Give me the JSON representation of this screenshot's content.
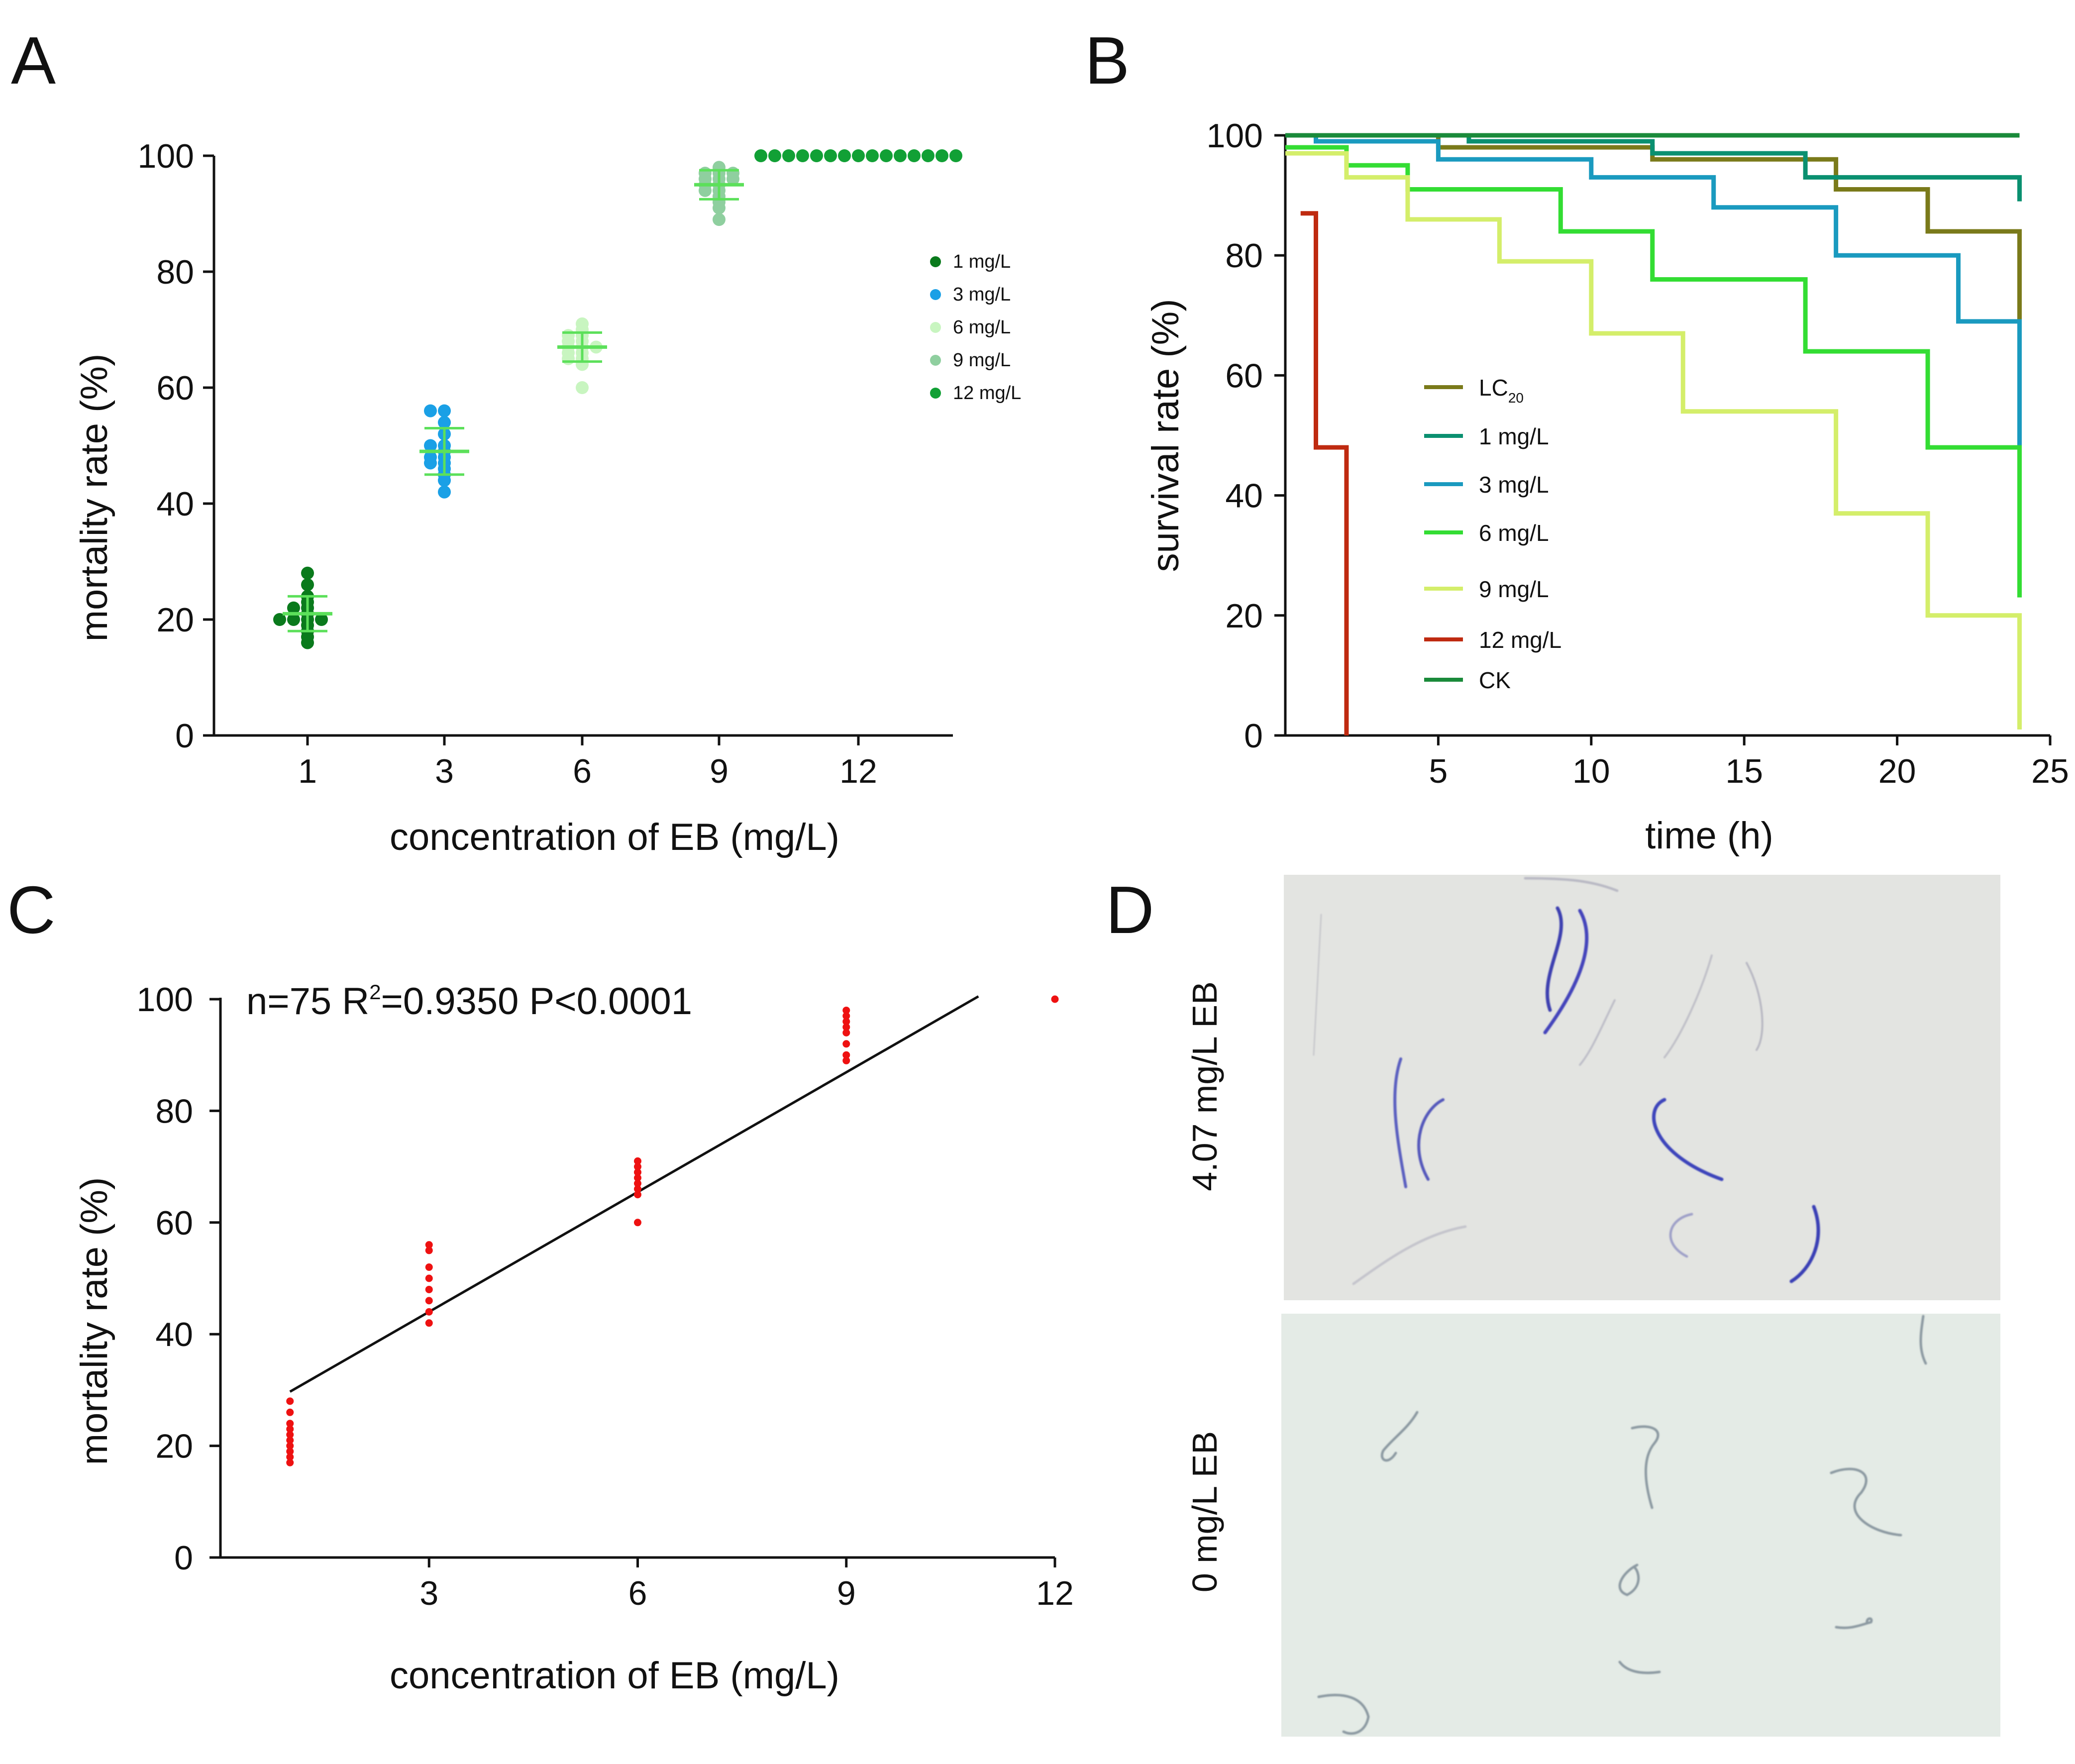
{
  "panels": {
    "A": {
      "letter": "A"
    },
    "B": {
      "letter": "B"
    },
    "C": {
      "letter": "C"
    },
    "D": {
      "letter": "D"
    }
  },
  "chart_data": [
    {
      "id": "A",
      "type": "scatter",
      "xlabel": "concentration of EB (mg/L)",
      "ylabel": "mortality rate (%)",
      "ylim": [
        0,
        100
      ],
      "yticks": [
        "0",
        "20",
        "40",
        "60",
        "80",
        "100"
      ],
      "categories": [
        "1",
        "3",
        "6",
        "9",
        "12"
      ],
      "legend_position": "right",
      "series": [
        {
          "name": "1 mg/L",
          "color": "#0a7a1c",
          "mean": 21,
          "sd": 3,
          "values": [
            28,
            26,
            24,
            23,
            22,
            22,
            21,
            20,
            20,
            20,
            20,
            19,
            18,
            17,
            16
          ]
        },
        {
          "name": "3 mg/L",
          "color": "#1aa0e6",
          "mean": 49,
          "sd": 4,
          "values": [
            56,
            56,
            54,
            52,
            50,
            50,
            49,
            48,
            48,
            47,
            47,
            46,
            45,
            44,
            42
          ]
        },
        {
          "name": "6 mg/L",
          "color": "#c8f5c0",
          "mean": 67,
          "sd": 2.5,
          "values": [
            71,
            70,
            69,
            69,
            68,
            68,
            67,
            67,
            67,
            66,
            66,
            65,
            65,
            64,
            60
          ]
        },
        {
          "name": "9 mg/L",
          "color": "#8fcf9f",
          "mean": 95,
          "sd": 2.5,
          "values": [
            98,
            97,
            97,
            97,
            96,
            96,
            96,
            95,
            95,
            94,
            94,
            93,
            92,
            91,
            89
          ]
        },
        {
          "name": "12 mg/L",
          "color": "#11a035",
          "mean": 100,
          "sd": 0,
          "values": [
            100,
            100,
            100,
            100,
            100,
            100,
            100,
            100,
            100,
            100,
            100,
            100,
            100,
            100,
            100
          ]
        }
      ]
    },
    {
      "id": "B",
      "type": "line",
      "xlabel": "time (h)",
      "ylabel": "survival rate (%)",
      "xlim": [
        0,
        25
      ],
      "ylim": [
        0,
        100
      ],
      "xticks": [
        "5",
        "10",
        "15",
        "20",
        "25"
      ],
      "yticks": [
        "0",
        "20",
        "40",
        "60",
        "80",
        "100"
      ],
      "legend_position": "center-left",
      "series": [
        {
          "name": "LC",
          "name_sub": "20",
          "color": "#7a7a1a",
          "x": [
            0,
            3,
            5,
            10,
            12,
            18,
            21,
            24,
            24
          ],
          "y": [
            100,
            100,
            98,
            98,
            96,
            91,
            84,
            84,
            69
          ]
        },
        {
          "name": "1 mg/L",
          "color": "#0a9070",
          "x": [
            0,
            6,
            12,
            17,
            24,
            24
          ],
          "y": [
            100,
            99,
            97,
            93,
            93,
            89
          ]
        },
        {
          "name": "3 mg/L",
          "color": "#1a9abf",
          "x": [
            0,
            1,
            5,
            10,
            14,
            18,
            22,
            24,
            24
          ],
          "y": [
            100,
            99,
            96,
            93,
            88,
            80,
            69,
            69,
            48
          ]
        },
        {
          "name": "6 mg/L",
          "color": "#33dd33",
          "x": [
            0,
            2,
            4,
            9,
            12,
            17,
            21,
            24,
            24
          ],
          "y": [
            98,
            95,
            91,
            84,
            76,
            64,
            48,
            48,
            23
          ]
        },
        {
          "name": "9 mg/L",
          "color": "#d4ee6a",
          "x": [
            0,
            2,
            4,
            7,
            10,
            13,
            18,
            21,
            24,
            24
          ],
          "y": [
            97,
            93,
            86,
            79,
            67,
            54,
            37,
            20,
            20,
            1
          ]
        },
        {
          "name": "12 mg/L",
          "color": "#bf2a10",
          "x": [
            0.5,
            1,
            2,
            2
          ],
          "y": [
            87,
            48,
            48,
            0
          ]
        },
        {
          "name": "CK",
          "color": "#1a8a3a",
          "x": [
            0,
            24
          ],
          "y": [
            100,
            100
          ]
        }
      ]
    },
    {
      "id": "C",
      "type": "scatter",
      "xlabel": "concentration of EB (mg/L)",
      "ylabel": "mortality rate (%)",
      "xlim": [
        0,
        12
      ],
      "ylim": [
        0,
        100
      ],
      "xticks": [
        "3",
        "6",
        "9",
        "12"
      ],
      "yticks": [
        "0",
        "20",
        "40",
        "60",
        "80",
        "100"
      ],
      "annotation": {
        "prefix": "n=75 R",
        "sup": "2",
        "suffix": "=0.9350 P<0.0001"
      },
      "point_color": "#ee1111",
      "x": [
        1,
        1,
        1,
        1,
        1,
        1,
        1,
        1,
        1,
        1,
        3,
        3,
        3,
        3,
        3,
        3,
        3,
        3,
        6,
        6,
        6,
        6,
        6,
        6,
        6,
        6,
        9,
        9,
        9,
        9,
        9,
        9,
        9,
        9,
        12
      ],
      "y": [
        28,
        26,
        24,
        23,
        22,
        21,
        20,
        19,
        18,
        17,
        56,
        55,
        52,
        50,
        48,
        46,
        44,
        42,
        71,
        70,
        69,
        68,
        67,
        66,
        65,
        60,
        98,
        97,
        96,
        95,
        94,
        92,
        90,
        89,
        100
      ],
      "fit": {
        "x": [
          1,
          10.9
        ],
        "y": [
          29.7,
          100.5
        ]
      }
    }
  ],
  "photos": {
    "top_label": "4.07 mg/L EB",
    "bottom_label": "0 mg/L EB"
  }
}
